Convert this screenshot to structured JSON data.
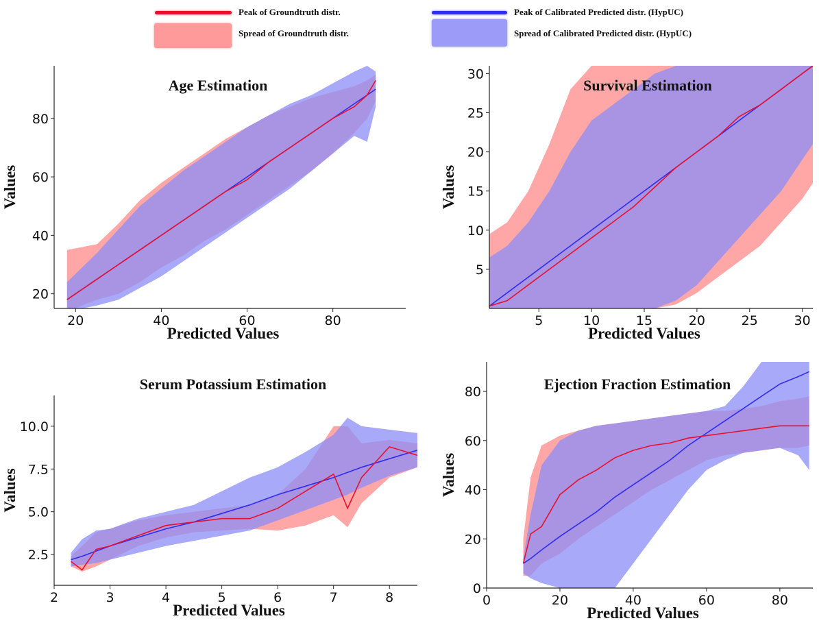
{
  "legend": {
    "gt_peak": "Peak of Groundtruth distr.",
    "gt_spread": "Spread of Groundtruth distr.",
    "pred_peak": "Peak of Calibrated Predicted distr. (HypUC)",
    "pred_spread": "Spread of Calibrated Predicted distr. (HypUC)"
  },
  "colors": {
    "gt_line": "#e8112d",
    "gt_fill": "#ff8a8a",
    "pred_line": "#2e2ef0",
    "pred_fill": "#8c8cf7",
    "overlap": "#a35bbf"
  },
  "chart_data": [
    {
      "type": "line",
      "title": "Age Estimation",
      "xlabel": "Predicted Values",
      "ylabel": "Values",
      "xlim": [
        15,
        97
      ],
      "ylim": [
        15,
        98
      ],
      "xticks": [
        20,
        40,
        60,
        80
      ],
      "yticks": [
        20,
        40,
        60,
        80
      ],
      "x": [
        18,
        25,
        30,
        35,
        40,
        45,
        50,
        55,
        60,
        65,
        70,
        75,
        80,
        85,
        88,
        90
      ],
      "series": [
        {
          "role": "gt_peak",
          "values": [
            18,
            25,
            30,
            35,
            40,
            45,
            50,
            55,
            59,
            65,
            70,
            75,
            80,
            84,
            88,
            93
          ]
        },
        {
          "role": "gt_lower",
          "values": [
            14,
            18,
            20,
            24,
            29,
            33,
            38,
            42,
            47,
            52,
            57,
            62,
            68,
            75,
            80,
            86
          ]
        },
        {
          "role": "gt_upper",
          "values": [
            35,
            37,
            44,
            52,
            58,
            63,
            68,
            73,
            77,
            81,
            84,
            87,
            89,
            91,
            93,
            95
          ]
        },
        {
          "role": "pred_peak",
          "values": [
            18,
            25,
            30,
            35,
            40,
            45,
            50,
            55,
            60,
            65,
            70,
            75,
            80,
            85,
            88,
            90
          ]
        },
        {
          "role": "pred_lower",
          "values": [
            14,
            16,
            18,
            22,
            26,
            31,
            36,
            41,
            46,
            51,
            56,
            62,
            68,
            74,
            72,
            84
          ]
        },
        {
          "role": "pred_upper",
          "values": [
            24,
            34,
            42,
            50,
            56,
            62,
            67,
            72,
            77,
            81,
            85,
            88,
            92,
            96,
            98,
            96
          ]
        }
      ]
    },
    {
      "type": "line",
      "title": "Survival Estimation",
      "xlabel": "Predicted Values",
      "ylabel": "Values",
      "xlim": [
        0.3,
        31
      ],
      "ylim": [
        0,
        31
      ],
      "xticks": [
        5,
        10,
        15,
        20,
        25,
        30
      ],
      "yticks": [
        5,
        10,
        15,
        20,
        25,
        30
      ],
      "x": [
        0.3,
        2,
        4,
        6,
        8,
        10,
        12,
        14,
        16,
        18,
        20,
        22,
        24,
        26,
        28,
        30,
        31
      ],
      "series": [
        {
          "role": "gt_peak",
          "values": [
            0.3,
            1,
            3,
            5,
            7,
            9,
            11,
            13,
            15.5,
            18,
            20,
            22,
            24.5,
            26,
            28,
            30,
            31
          ]
        },
        {
          "role": "gt_lower",
          "values": [
            0,
            0,
            0,
            0,
            0,
            0,
            0,
            0,
            0,
            0.5,
            2,
            4,
            6,
            8,
            11,
            14,
            16
          ]
        },
        {
          "role": "gt_upper",
          "values": [
            9.5,
            11,
            15,
            21,
            28,
            31,
            31,
            31,
            31,
            31,
            31,
            31,
            31,
            31,
            31,
            31,
            31
          ]
        },
        {
          "role": "pred_peak",
          "values": [
            0.3,
            2,
            4,
            6,
            8,
            10,
            12,
            14,
            16,
            18,
            20,
            22,
            24,
            26,
            28,
            30,
            31
          ]
        },
        {
          "role": "pred_lower",
          "values": [
            0,
            0,
            0,
            0,
            0,
            0,
            0,
            0,
            0,
            1,
            3,
            6,
            9,
            12,
            15,
            19,
            21
          ]
        },
        {
          "role": "pred_upper",
          "values": [
            6.5,
            8,
            11,
            15,
            20,
            24,
            26,
            28,
            30,
            31,
            31,
            31,
            31,
            31,
            31,
            31,
            31
          ]
        }
      ]
    },
    {
      "type": "line",
      "title": "Serum Potassium Estimation",
      "xlabel": "Predicted Values",
      "ylabel": "Values",
      "xlim": [
        2,
        8.5
      ],
      "ylim": [
        0.7,
        11.8
      ],
      "xticks": [
        2,
        3,
        4,
        5,
        6,
        7,
        8
      ],
      "yticks": [
        2.5,
        5.0,
        7.5,
        10.0
      ],
      "x": [
        2.3,
        2.5,
        2.75,
        3,
        3.5,
        4,
        4.5,
        5,
        5.5,
        6,
        6.5,
        7,
        7.25,
        7.5,
        8,
        8.5
      ],
      "series": [
        {
          "role": "gt_peak",
          "values": [
            2.1,
            1.6,
            2.8,
            3.0,
            3.6,
            4.2,
            4.4,
            4.6,
            4.6,
            5.2,
            6.2,
            7.2,
            5.2,
            7.0,
            8.8,
            8.3
          ]
        },
        {
          "role": "gt_lower",
          "values": [
            1.8,
            1.5,
            1.8,
            2.2,
            3.0,
            3.5,
            3.8,
            3.9,
            4.0,
            3.9,
            4.2,
            4.8,
            4.1,
            5.5,
            7.0,
            7.6
          ]
        },
        {
          "role": "gt_upper",
          "values": [
            2.4,
            3.0,
            3.8,
            4.0,
            4.5,
            4.8,
            5.0,
            5.2,
            5.4,
            6.0,
            7.5,
            10.0,
            10.0,
            9.0,
            9.2,
            9.0
          ]
        },
        {
          "role": "pred_peak",
          "values": [
            2.2,
            2.4,
            2.7,
            3.0,
            3.5,
            4.0,
            4.4,
            4.9,
            5.4,
            6.0,
            6.5,
            7.0,
            7.3,
            7.6,
            8.1,
            8.6
          ]
        },
        {
          "role": "pred_lower",
          "values": [
            1.8,
            1.9,
            2.0,
            2.2,
            2.6,
            3.0,
            3.3,
            3.6,
            3.9,
            4.5,
            5.1,
            5.7,
            6.0,
            6.4,
            7.1,
            7.6
          ]
        },
        {
          "role": "pred_upper",
          "values": [
            2.6,
            3.4,
            3.9,
            4.0,
            4.6,
            5.0,
            5.4,
            6.2,
            7.0,
            7.6,
            8.5,
            9.5,
            10.5,
            10.0,
            9.8,
            9.6
          ]
        }
      ]
    },
    {
      "type": "line",
      "title": "Ejection Fraction Estimation",
      "xlabel": "Predicted Values",
      "ylabel": "Values",
      "xlim": [
        0,
        89
      ],
      "ylim": [
        0,
        92
      ],
      "xticks": [
        0,
        20,
        40,
        60,
        80
      ],
      "yticks": [
        0,
        20,
        40,
        60,
        80
      ],
      "x": [
        10,
        12,
        15,
        20,
        25,
        30,
        35,
        40,
        45,
        50,
        55,
        60,
        65,
        70,
        75,
        80,
        85,
        88
      ],
      "series": [
        {
          "role": "gt_peak",
          "values": [
            10,
            22,
            25,
            38,
            44,
            48,
            53,
            56,
            58,
            59,
            61,
            62,
            63,
            64,
            65,
            66,
            66,
            66
          ]
        },
        {
          "role": "gt_lower",
          "values": [
            5,
            5,
            10,
            14,
            20,
            25,
            30,
            35,
            40,
            44,
            48,
            52,
            54,
            55,
            56,
            57,
            57,
            58
          ]
        },
        {
          "role": "gt_upper",
          "values": [
            20,
            45,
            58,
            62,
            64,
            66,
            67,
            68,
            69,
            70,
            71,
            72,
            72,
            73,
            74,
            76,
            77,
            78
          ]
        },
        {
          "role": "pred_peak",
          "values": [
            10,
            12,
            15.5,
            21,
            26,
            31,
            37,
            42,
            47,
            52,
            58,
            63,
            68,
            73,
            78,
            83,
            86,
            88
          ]
        },
        {
          "role": "pred_lower",
          "values": [
            6,
            4,
            2,
            0,
            0,
            0,
            0,
            10,
            20,
            30,
            40,
            48,
            52,
            55,
            56,
            57,
            54,
            48
          ]
        },
        {
          "role": "pred_upper",
          "values": [
            12,
            30,
            50,
            60,
            64,
            66,
            67,
            68,
            69,
            70,
            71,
            72,
            74,
            82,
            92,
            92,
            92,
            92
          ]
        }
      ]
    }
  ]
}
